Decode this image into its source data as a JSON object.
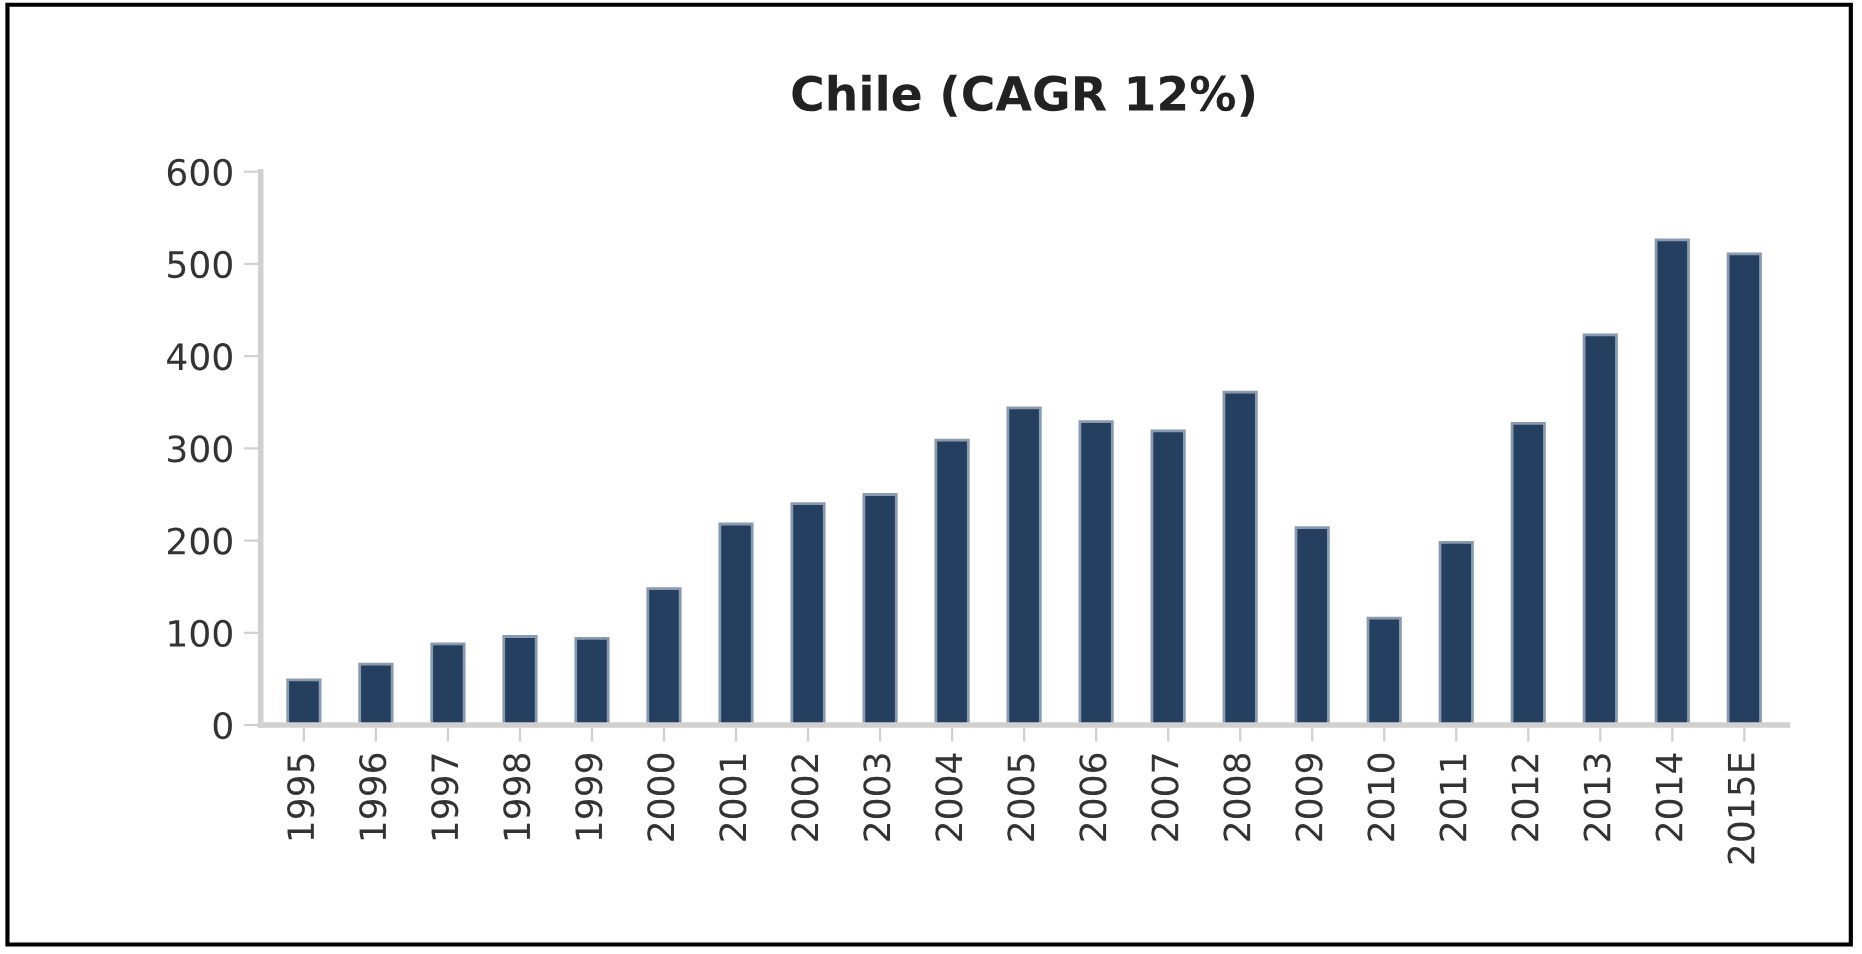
{
  "chart_data": {
    "type": "bar",
    "title": "Chile (CAGR 12%)",
    "categories": [
      "1995",
      "1996",
      "1997",
      "1998",
      "1999",
      "2000",
      "2001",
      "2002",
      "2003",
      "2004",
      "2005",
      "2006",
      "2007",
      "2008",
      "2009",
      "2010",
      "2011",
      "2012",
      "2013",
      "2014",
      "2015E"
    ],
    "values": [
      49,
      66,
      88,
      96,
      94,
      148,
      218,
      240,
      250,
      309,
      344,
      329,
      319,
      361,
      214,
      116,
      198,
      327,
      423,
      526,
      511
    ],
    "color": "#243f60",
    "ylim": [
      0,
      600
    ],
    "yticks": [
      0,
      100,
      200,
      300,
      400,
      500,
      600
    ],
    "grid": false
  }
}
